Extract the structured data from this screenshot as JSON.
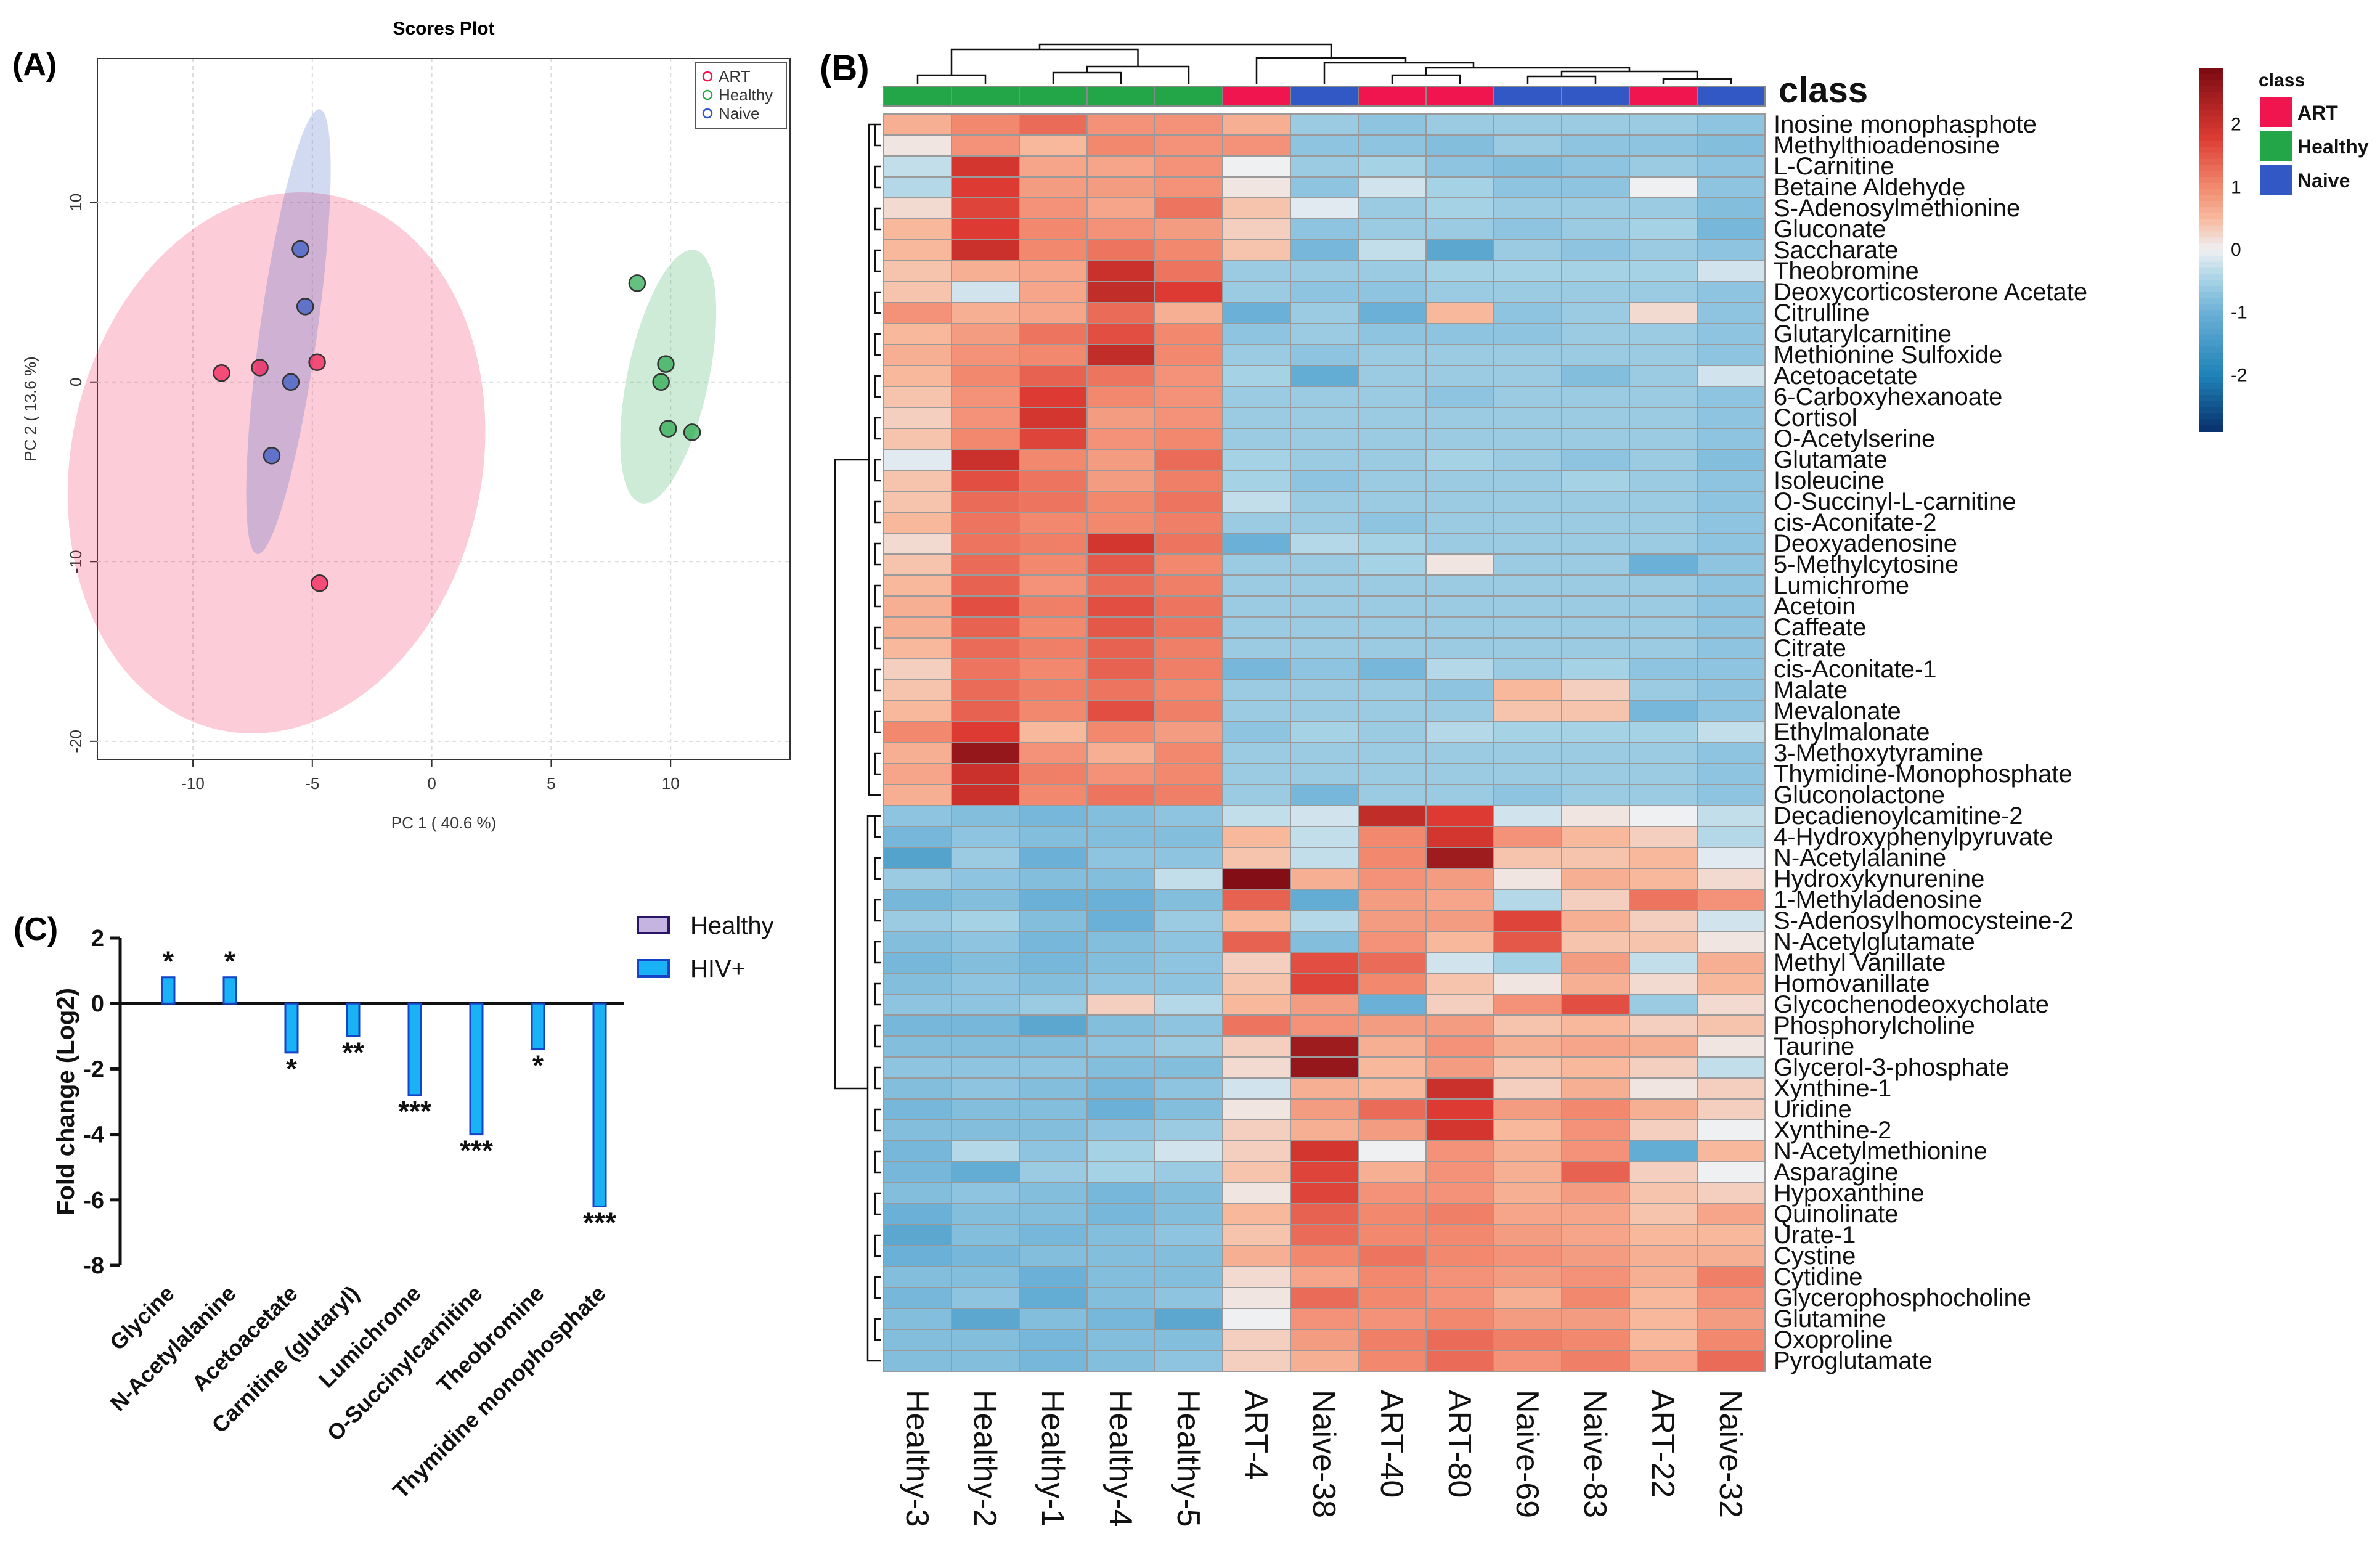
{
  "panels": {
    "a": {
      "label": "(A)"
    },
    "b": {
      "label": "(B)"
    },
    "c": {
      "label": "(C)"
    }
  },
  "colors": {
    "ART": "#f0154f",
    "Healthy": "#22a648",
    "Naive": "#3158c4",
    "heat_low": "#08306b",
    "heat_mid": "#eef0f2",
    "heat_high": "#7a0a12",
    "bar_fill": "#19b2f5",
    "bar_edge": "#1544c9",
    "healthy_swatch": "#c6b4e0"
  },
  "chart_data": [
    {
      "type": "scatter",
      "title": "Scores Plot",
      "xlabel": "PC 1 ( 40.6 %)",
      "ylabel": "PC 2 ( 13.6 %)",
      "xlim": [
        -14,
        15
      ],
      "ylim": [
        -21,
        18
      ],
      "xticks": [
        -10,
        -5,
        0,
        5,
        10
      ],
      "yticks": [
        -20,
        -10,
        0,
        10
      ],
      "grid": true,
      "legend_position": "top-right",
      "legend": [
        "ART",
        "Healthy",
        "Naive"
      ],
      "series": [
        {
          "name": "ART",
          "points": [
            [
              -8.8,
              0.5
            ],
            [
              -7.2,
              0.8
            ],
            [
              -4.8,
              1.1
            ],
            [
              -4.7,
              -11.2
            ]
          ],
          "ellipse": {
            "cx": -6.5,
            "cy": -4.5,
            "rx": 8.6,
            "ry": 15.2,
            "angle_deg": 12
          }
        },
        {
          "name": "Healthy",
          "points": [
            [
              8.6,
              5.5
            ],
            [
              9.8,
              1.0
            ],
            [
              9.6,
              0.0
            ],
            [
              9.9,
              -2.6
            ],
            [
              10.9,
              -2.8
            ]
          ],
          "ellipse": {
            "cx": 9.9,
            "cy": 0.3,
            "rx": 1.7,
            "ry": 7.2,
            "angle_deg": 12
          }
        },
        {
          "name": "Naive",
          "points": [
            [
              -5.5,
              7.4
            ],
            [
              -5.3,
              4.2
            ],
            [
              -5.9,
              0.0
            ],
            [
              -6.7,
              -4.1
            ]
          ],
          "ellipse": {
            "cx": -6.0,
            "cy": 2.8,
            "rx": 1.2,
            "ry": 12.5,
            "angle_deg": 8
          }
        }
      ]
    },
    {
      "type": "heatmap",
      "legend_title": "class",
      "legend": [
        "ART",
        "Healthy",
        "Naive"
      ],
      "color_scale_ticks": [
        2,
        1,
        0,
        -1,
        -2
      ],
      "color_range": [
        -2.9,
        2.9
      ],
      "samples": [
        "Healthy-3",
        "Healthy-2",
        "Healthy-1",
        "Healthy-4",
        "Healthy-5",
        "ART-4",
        "Naive-38",
        "ART-40",
        "ART-80",
        "Naive-69",
        "Naive-83",
        "ART-22",
        "Naive-32"
      ],
      "sample_class": [
        "Healthy",
        "Healthy",
        "Healthy",
        "Healthy",
        "Healthy",
        "ART",
        "Naive",
        "ART",
        "ART",
        "Naive",
        "Naive",
        "ART",
        "Naive"
      ],
      "metabolites": [
        "Inosine monophasphote",
        "Methylthioadenosine",
        "L-Carnitine",
        "Betaine Aldehyde",
        "S-Adenosylmethionine",
        "Gluconate",
        "Saccharate",
        "Theobromine",
        "Deoxycorticosterone Acetate",
        "Citrulline",
        "Glutarylcarnitine",
        "Methionine Sulfoxide",
        "Acetoacetate",
        "6-Carboxyhexanoate",
        "Cortisol",
        "O-Acetylserine",
        "Glutamate",
        "Isoleucine",
        "O-Succinyl-L-carnitine",
        "cis-Aconitate-2",
        "Deoxyadenosine",
        "5-Methylcytosine",
        "Lumichrome",
        "Acetoin",
        "Caffeate",
        "Citrate",
        "cis-Aconitate-1",
        "Malate",
        "Mevalonate",
        "Ethylmalonate",
        "3-Methoxytyramine",
        "Thymidine-Monophosphate",
        "Gluconolactone",
        "Decadienoylcamitine-2",
        "4-Hydroxyphenylpyruvate",
        "N-Acetylalanine",
        "Hydroxykynurenine",
        "1-Methyladenosine",
        "S-Adenosylhomocysteine-2",
        "N-Acetylglutamate",
        "Methyl Vanillate",
        "Homovanillate",
        "Glycochenodeoxycholate",
        "Phosphorylcholine",
        "Taurine",
        "Glycerol-3-phosphate",
        "Xynthine-1",
        "Uridine",
        "Xynthine-2",
        "N-Acetylmethionine",
        "Asparagine",
        "Hypoxanthine",
        "Quinolinate",
        "Urate-1",
        "Cystine",
        "Cytidine",
        "Glycerophosphocholine",
        "Glutamine",
        "Oxoproline",
        "Pyroglutamate"
      ],
      "values": [
        [
          0.6,
          1.0,
          1.3,
          0.9,
          0.9,
          0.6,
          -0.6,
          -0.7,
          -0.6,
          -0.6,
          -0.6,
          -0.6,
          -0.7
        ],
        [
          0.1,
          0.9,
          0.5,
          1.0,
          0.9,
          0.9,
          -0.7,
          -0.7,
          -0.8,
          -0.6,
          -0.7,
          -0.7,
          -0.8
        ],
        [
          -0.3,
          1.9,
          0.7,
          0.7,
          0.9,
          0.0,
          -0.6,
          -0.5,
          -0.7,
          -0.8,
          -0.7,
          -0.6,
          -0.7
        ],
        [
          -0.4,
          1.8,
          0.8,
          0.8,
          0.9,
          0.1,
          -0.7,
          -0.2,
          -0.5,
          -0.7,
          -0.7,
          0.0,
          -0.7
        ],
        [
          0.2,
          1.7,
          0.9,
          0.7,
          1.2,
          0.4,
          -0.1,
          -0.6,
          -0.5,
          -0.6,
          -0.6,
          -0.6,
          -0.8
        ],
        [
          0.5,
          1.8,
          1.0,
          0.9,
          0.8,
          0.3,
          -0.7,
          -0.6,
          -0.6,
          -0.7,
          -0.6,
          -0.5,
          -0.9
        ],
        [
          0.5,
          2.0,
          1.0,
          1.2,
          1.0,
          0.4,
          -0.9,
          -0.3,
          -1.2,
          -0.6,
          -0.7,
          -0.6,
          -0.7
        ],
        [
          0.4,
          0.6,
          0.7,
          2.0,
          1.2,
          -0.6,
          -0.6,
          -0.6,
          -0.5,
          -0.5,
          -0.5,
          -0.5,
          -0.2
        ],
        [
          0.4,
          -0.2,
          0.7,
          2.1,
          1.8,
          -0.6,
          -0.7,
          -0.7,
          -0.6,
          -0.6,
          -0.6,
          -0.6,
          -0.7
        ],
        [
          0.9,
          0.6,
          0.7,
          1.3,
          0.6,
          -1.0,
          -0.6,
          -1.0,
          0.5,
          -0.7,
          -0.6,
          0.2,
          -0.7
        ],
        [
          0.5,
          0.8,
          1.2,
          1.6,
          1.0,
          -0.7,
          -0.6,
          -0.7,
          -0.7,
          -0.7,
          -0.6,
          -0.6,
          -0.7
        ],
        [
          0.6,
          0.9,
          1.0,
          2.1,
          1.0,
          -0.6,
          -0.7,
          -0.6,
          -0.6,
          -0.6,
          -0.6,
          -0.6,
          -0.7
        ],
        [
          0.5,
          1.0,
          1.4,
          1.2,
          0.9,
          -0.5,
          -1.1,
          -0.6,
          -0.6,
          -0.6,
          -0.8,
          -0.6,
          -0.2
        ],
        [
          0.4,
          0.9,
          1.8,
          1.0,
          0.9,
          -0.6,
          -0.6,
          -0.6,
          -0.7,
          -0.6,
          -0.6,
          -0.6,
          -0.7
        ],
        [
          0.3,
          0.9,
          1.9,
          0.8,
          0.9,
          -0.6,
          -0.6,
          -0.6,
          -0.6,
          -0.6,
          -0.6,
          -0.6,
          -0.7
        ],
        [
          0.4,
          1.0,
          1.7,
          0.9,
          1.0,
          -0.6,
          -0.6,
          -0.6,
          -0.6,
          -0.6,
          -0.6,
          -0.6,
          -0.7
        ],
        [
          -0.1,
          2.0,
          1.0,
          0.8,
          1.3,
          -0.5,
          -0.6,
          -0.6,
          -0.5,
          -0.6,
          -0.7,
          -0.6,
          -0.8
        ],
        [
          0.4,
          1.6,
          1.2,
          0.8,
          1.1,
          -0.5,
          -0.7,
          -0.6,
          -0.6,
          -0.6,
          -0.5,
          -0.6,
          -0.7
        ],
        [
          0.4,
          1.3,
          1.2,
          1.0,
          1.2,
          -0.3,
          -0.6,
          -0.6,
          -0.6,
          -0.6,
          -0.6,
          -0.6,
          -0.7
        ],
        [
          0.5,
          1.2,
          1.0,
          1.0,
          1.1,
          -0.6,
          -0.6,
          -0.7,
          -0.6,
          -0.6,
          -0.6,
          -0.6,
          -0.7
        ],
        [
          0.2,
          1.2,
          1.1,
          1.9,
          1.2,
          -1.0,
          -0.4,
          -0.5,
          -0.6,
          -0.6,
          -0.6,
          -0.6,
          -0.7
        ],
        [
          0.4,
          1.3,
          1.0,
          1.5,
          1.0,
          -0.6,
          -0.6,
          -0.5,
          0.1,
          -0.6,
          -0.6,
          -1.0,
          -0.7
        ],
        [
          0.5,
          1.4,
          0.9,
          1.3,
          1.1,
          -0.6,
          -0.6,
          -0.6,
          -0.6,
          -0.6,
          -0.6,
          -0.6,
          -0.7
        ],
        [
          0.6,
          1.6,
          1.1,
          1.6,
          1.2,
          -0.6,
          -0.6,
          -0.6,
          -0.6,
          -0.6,
          -0.6,
          -0.6,
          -0.7
        ],
        [
          0.6,
          1.4,
          1.0,
          1.5,
          1.2,
          -0.6,
          -0.6,
          -0.6,
          -0.6,
          -0.6,
          -0.6,
          -0.6,
          -0.7
        ],
        [
          0.5,
          1.3,
          1.1,
          1.4,
          1.1,
          -0.6,
          -0.6,
          -0.6,
          -0.6,
          -0.6,
          -0.6,
          -0.6,
          -0.7
        ],
        [
          0.3,
          1.2,
          1.0,
          1.4,
          1.1,
          -0.9,
          -0.7,
          -0.9,
          -0.4,
          -0.6,
          -0.5,
          -0.7,
          -0.7
        ],
        [
          0.4,
          1.3,
          1.1,
          1.2,
          1.0,
          -0.6,
          -0.6,
          -0.6,
          -0.7,
          0.5,
          0.3,
          -0.6,
          -0.7
        ],
        [
          0.5,
          1.4,
          1.0,
          1.6,
          1.1,
          -0.6,
          -0.6,
          -0.6,
          -0.6,
          0.4,
          0.4,
          -0.9,
          -0.7
        ],
        [
          1.0,
          1.8,
          0.5,
          1.0,
          0.8,
          -0.7,
          -0.5,
          -0.6,
          -0.4,
          -0.5,
          -0.5,
          -0.5,
          -0.3
        ],
        [
          0.6,
          2.6,
          0.9,
          0.6,
          1.0,
          -0.6,
          -0.6,
          -0.6,
          -0.6,
          -0.6,
          -0.6,
          -0.6,
          -0.7
        ],
        [
          0.7,
          2.0,
          1.1,
          0.9,
          1.0,
          -0.6,
          -0.6,
          -0.6,
          -0.6,
          -0.6,
          -0.6,
          -0.6,
          -0.7
        ],
        [
          0.6,
          2.0,
          1.0,
          1.2,
          1.1,
          -0.6,
          -0.9,
          -0.6,
          -0.6,
          -0.7,
          -0.6,
          -0.6,
          -0.7
        ],
        [
          -0.7,
          -0.8,
          -0.9,
          -0.8,
          -0.7,
          -0.3,
          -0.2,
          2.1,
          1.8,
          -0.2,
          0.1,
          0.0,
          -0.3
        ],
        [
          -0.9,
          -0.7,
          -0.8,
          -0.8,
          -0.8,
          0.5,
          -0.3,
          1.0,
          1.9,
          0.9,
          0.5,
          0.3,
          -0.4
        ],
        [
          -1.3,
          -0.6,
          -1.0,
          -0.7,
          -0.7,
          0.4,
          -0.3,
          1.0,
          2.5,
          0.4,
          0.4,
          0.5,
          -0.1
        ],
        [
          -0.6,
          -0.7,
          -0.8,
          -0.8,
          -0.3,
          2.8,
          0.6,
          0.9,
          0.8,
          0.1,
          0.6,
          0.5,
          0.2
        ],
        [
          -0.9,
          -0.8,
          -1.0,
          -1.0,
          -0.8,
          1.4,
          -1.1,
          0.8,
          0.7,
          -0.4,
          0.3,
          1.2,
          0.9
        ],
        [
          -0.6,
          -0.5,
          -0.8,
          -1.0,
          -0.6,
          0.5,
          -0.4,
          0.8,
          0.8,
          1.7,
          0.6,
          0.3,
          -0.2
        ],
        [
          -0.8,
          -0.7,
          -0.9,
          -0.8,
          -0.7,
          1.4,
          -0.8,
          0.9,
          0.5,
          1.5,
          0.4,
          0.4,
          0.1
        ],
        [
          -0.9,
          -0.8,
          -0.9,
          -0.8,
          -0.7,
          0.3,
          1.6,
          1.3,
          -0.2,
          -0.5,
          0.8,
          -0.3,
          0.6
        ],
        [
          -0.8,
          -0.7,
          -0.8,
          -0.7,
          -0.7,
          0.4,
          1.7,
          1.0,
          0.4,
          0.1,
          0.6,
          0.2,
          0.5
        ],
        [
          -0.7,
          -0.7,
          -0.6,
          0.3,
          -0.4,
          0.5,
          0.8,
          -1.0,
          0.3,
          0.9,
          1.6,
          -0.6,
          0.2
        ],
        [
          -0.9,
          -0.9,
          -1.2,
          -0.8,
          -0.7,
          1.2,
          0.9,
          0.8,
          0.8,
          0.4,
          0.5,
          0.3,
          0.4
        ],
        [
          -0.8,
          -0.8,
          -0.8,
          -0.7,
          -0.6,
          0.3,
          2.5,
          0.6,
          0.9,
          0.6,
          0.7,
          0.6,
          0.1
        ],
        [
          -0.7,
          -0.7,
          -0.7,
          -0.8,
          -0.8,
          0.2,
          2.6,
          0.5,
          0.8,
          0.4,
          0.5,
          0.3,
          -0.3
        ],
        [
          -0.8,
          -0.7,
          -0.8,
          -0.9,
          -0.7,
          -0.2,
          0.6,
          0.5,
          2.0,
          0.3,
          0.6,
          0.1,
          0.3
        ],
        [
          -0.9,
          -0.8,
          -0.8,
          -1.0,
          -0.8,
          0.1,
          0.8,
          1.3,
          1.8,
          0.8,
          1.0,
          0.6,
          0.3
        ],
        [
          -0.8,
          -0.8,
          -0.8,
          -0.7,
          -0.6,
          0.3,
          0.6,
          0.8,
          1.9,
          0.5,
          0.9,
          0.3,
          0.0
        ],
        [
          -0.9,
          -0.4,
          -0.7,
          -0.5,
          -0.2,
          0.3,
          1.9,
          0.0,
          0.9,
          0.6,
          0.9,
          -1.1,
          0.5
        ],
        [
          -0.9,
          -1.1,
          -0.6,
          -0.5,
          -0.6,
          0.4,
          1.7,
          0.6,
          0.9,
          0.6,
          1.4,
          0.3,
          0.0
        ],
        [
          -0.8,
          -0.7,
          -0.8,
          -0.9,
          -0.8,
          0.1,
          1.7,
          0.9,
          0.9,
          0.6,
          0.8,
          0.4,
          0.3
        ],
        [
          -1.0,
          -0.8,
          -0.8,
          -0.9,
          -0.8,
          0.5,
          1.4,
          1.0,
          1.1,
          0.7,
          0.7,
          0.4,
          0.7
        ],
        [
          -1.2,
          -0.8,
          -0.9,
          -0.8,
          -0.7,
          0.4,
          1.3,
          1.0,
          1.0,
          0.8,
          0.7,
          0.5,
          0.5
        ],
        [
          -1.0,
          -0.9,
          -0.8,
          -0.8,
          -0.8,
          0.6,
          1.0,
          1.2,
          1.0,
          0.9,
          0.8,
          0.6,
          0.6
        ],
        [
          -0.8,
          -0.8,
          -1.0,
          -0.8,
          -0.8,
          0.2,
          0.7,
          1.0,
          0.9,
          0.8,
          0.9,
          0.6,
          1.1
        ],
        [
          -0.9,
          -0.7,
          -1.1,
          -0.8,
          -0.7,
          0.1,
          1.3,
          1.0,
          0.9,
          0.6,
          1.0,
          0.5,
          0.9
        ],
        [
          -0.8,
          -1.2,
          -0.8,
          -0.9,
          -1.2,
          0.0,
          0.9,
          0.9,
          1.0,
          0.8,
          0.8,
          0.5,
          0.8
        ],
        [
          -0.8,
          -0.8,
          -0.9,
          -0.8,
          -0.8,
          0.3,
          0.8,
          1.1,
          1.3,
          1.1,
          1.0,
          0.5,
          1.0
        ],
        [
          -0.8,
          -0.8,
          -0.9,
          -0.8,
          -0.7,
          0.3,
          0.6,
          1.0,
          1.3,
          0.9,
          1.1,
          0.7,
          1.3
        ]
      ]
    },
    {
      "type": "bar",
      "ylabel": "Fold change (Log2)",
      "ylim": [
        -8,
        2
      ],
      "yticks": [
        2,
        0,
        -2,
        -4,
        -6,
        -8
      ],
      "legend_position": "top-right",
      "series": [
        {
          "name": "Healthy",
          "values": [
            0,
            0,
            0,
            0,
            0,
            0,
            0,
            0
          ]
        },
        {
          "name": "HIV+",
          "values": [
            0.8,
            0.8,
            -1.5,
            -1.0,
            -2.8,
            -4.0,
            -1.4,
            -6.2
          ]
        }
      ],
      "categories": [
        "Glycine",
        "N-Acetylalanine",
        "Acetoacetate",
        "Carnitine (glutaryl)",
        "Lumichrome",
        "O-Succinylcarnitine",
        "Theobromine",
        "Thymidine monophosphate"
      ],
      "significance": [
        "*",
        "*",
        "*",
        "**",
        "***",
        "***",
        "*",
        "***"
      ]
    }
  ]
}
